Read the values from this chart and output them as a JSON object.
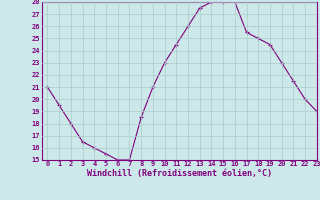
{
  "x": [
    0,
    1,
    2,
    3,
    4,
    5,
    6,
    7,
    8,
    9,
    10,
    11,
    12,
    13,
    14,
    15,
    16,
    17,
    18,
    19,
    20,
    21,
    22,
    23
  ],
  "y": [
    21,
    19.5,
    18,
    16.5,
    16,
    15.5,
    15,
    15,
    18.5,
    21,
    23,
    24.5,
    26,
    27.5,
    28,
    28,
    28,
    25.5,
    25,
    24.5,
    23,
    21.5,
    20,
    19
  ],
  "line_color": "#800080",
  "marker": "+",
  "marker_color": "#800080",
  "bg_color": "#cce8e8",
  "grid_color": "#aacccc",
  "xlabel": "Windchill (Refroidissement éolien,°C)",
  "xlabel_color": "#800080",
  "ylim": [
    15,
    28
  ],
  "xlim": [
    -0.5,
    23
  ],
  "yticks": [
    15,
    16,
    17,
    18,
    19,
    20,
    21,
    22,
    23,
    24,
    25,
    26,
    27,
    28
  ],
  "xticks": [
    0,
    1,
    2,
    3,
    4,
    5,
    6,
    7,
    8,
    9,
    10,
    11,
    12,
    13,
    14,
    15,
    16,
    17,
    18,
    19,
    20,
    21,
    22,
    23
  ],
  "tick_fontsize": 5.0,
  "xlabel_fontsize": 6.0,
  "tick_color": "#800080",
  "spine_color": "#800080",
  "linewidth": 0.8,
  "markersize": 3,
  "markeredgewidth": 0.8
}
